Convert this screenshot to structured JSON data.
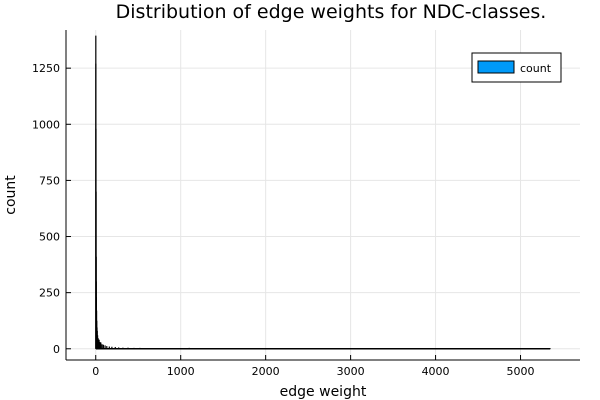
{
  "chart_data": {
    "type": "bar",
    "title": "Distribution of edge weights for NDC-classes.",
    "xlabel": "edge weight",
    "ylabel": "count",
    "xlim": [
      -350,
      5700
    ],
    "ylim": [
      -50,
      1420
    ],
    "xticks": [
      0,
      1000,
      2000,
      3000,
      4000,
      5000
    ],
    "yticks": [
      0,
      250,
      500,
      750,
      1000,
      1250
    ],
    "grid": true,
    "legend": {
      "position": "top-right",
      "entries": [
        {
          "name": "count",
          "color": "#009AF9"
        }
      ]
    },
    "series": [
      {
        "name": "count",
        "color": "#009AF9",
        "x": [
          1,
          2,
          3,
          4,
          5,
          6,
          8,
          10,
          12,
          15,
          18,
          22,
          27,
          33,
          40,
          50,
          60,
          75,
          90,
          110,
          130,
          160,
          190,
          230,
          270,
          320,
          380,
          450,
          520,
          600,
          700,
          820,
          950,
          1100,
          1250,
          1450,
          1700,
          2000,
          2300,
          2600,
          2900,
          3100,
          3300,
          3500,
          3800,
          4100,
          4400,
          4700,
          5000,
          5350
        ],
        "values": [
          1395,
          1270,
          980,
          700,
          410,
          300,
          230,
          170,
          125,
          95,
          80,
          60,
          48,
          42,
          40,
          30,
          28,
          20,
          18,
          15,
          12,
          10,
          9,
          8,
          6,
          5,
          5,
          4,
          4,
          3,
          3,
          3,
          2,
          4,
          2,
          2,
          2,
          3,
          1,
          1,
          2,
          1,
          1,
          1,
          1,
          1,
          1,
          1,
          1,
          2
        ]
      }
    ]
  }
}
